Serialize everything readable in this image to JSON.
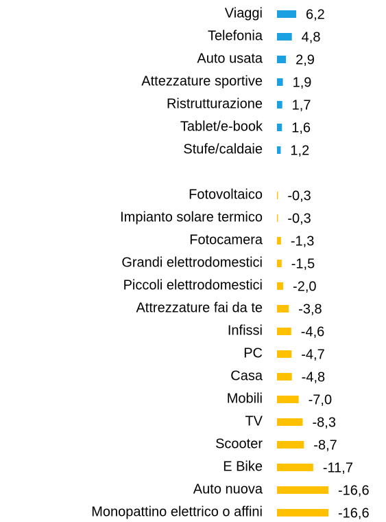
{
  "chart_data": {
    "type": "bar",
    "orientation": "horizontal",
    "categories": [
      "Viaggi",
      "Telefonia",
      "Auto usata",
      "Attezzature sportive",
      "Ristrutturazione",
      "Tablet/e-book",
      "Stufe/caldaie",
      null,
      "Fotovoltaico",
      "Impianto solare termico",
      "Fotocamera",
      "Grandi elettrodomestici",
      "Piccoli elettrodomestici",
      "Attrezzature fai da te",
      "Infissi",
      "PC",
      "Casa",
      "Mobili",
      "TV",
      "Scooter",
      "E Bike",
      "Auto nuova",
      "Monopattino elettrico o affini"
    ],
    "values": [
      6.2,
      4.8,
      2.9,
      1.9,
      1.7,
      1.6,
      1.2,
      null,
      -0.3,
      -0.3,
      -1.3,
      -1.5,
      -2.0,
      -3.8,
      -4.6,
      -4.7,
      -4.8,
      -7.0,
      -8.3,
      -8.7,
      -11.7,
      -16.6,
      -16.6
    ],
    "value_labels": [
      "6,2",
      "4,8",
      "2,9",
      "1,9",
      "1,7",
      "1,6",
      "1,2",
      null,
      "-0,3",
      "-0,3",
      "-1,3",
      "-1,5",
      "-2,0",
      "-3,8",
      "-4,6",
      "-4,7",
      "-4,8",
      "-7,0",
      "-8,3",
      "-8,7",
      "-11,7",
      "-16,6",
      "-16,6"
    ],
    "positive_color": "#1ba1e2",
    "negative_color": "#ffc000"
  }
}
